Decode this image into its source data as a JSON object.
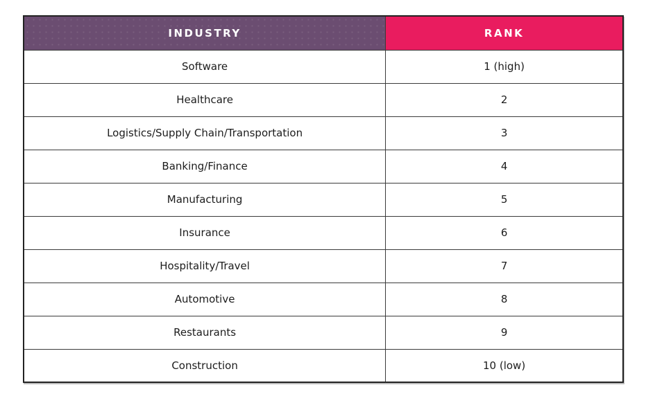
{
  "colors": {
    "industry_header_bg": "#6B4D71",
    "rank_header_bg": "#E91C5F",
    "header_text": "#FFFFFF",
    "body_text": "#1C1C1C",
    "border": "#3A3A3A"
  },
  "table": {
    "columns": [
      {
        "key": "industry",
        "label": "INDUSTRY"
      },
      {
        "key": "rank",
        "label": "RANK"
      }
    ],
    "rows": [
      {
        "industry": "Software",
        "rank": "1 (high)"
      },
      {
        "industry": "Healthcare",
        "rank": "2"
      },
      {
        "industry": "Logistics/Supply Chain/Transportation",
        "rank": "3"
      },
      {
        "industry": "Banking/Finance",
        "rank": "4"
      },
      {
        "industry": "Manufacturing",
        "rank": "5"
      },
      {
        "industry": "Insurance",
        "rank": "6"
      },
      {
        "industry": "Hospitality/Travel",
        "rank": "7"
      },
      {
        "industry": "Automotive",
        "rank": "8"
      },
      {
        "industry": "Restaurants",
        "rank": "9"
      },
      {
        "industry": "Construction",
        "rank": "10 (low)"
      }
    ]
  },
  "chart_data": {
    "type": "table",
    "columns": [
      "INDUSTRY",
      "RANK"
    ],
    "rows": [
      [
        "Software",
        "1 (high)"
      ],
      [
        "Healthcare",
        "2"
      ],
      [
        "Logistics/Supply Chain/Transportation",
        "3"
      ],
      [
        "Banking/Finance",
        "4"
      ],
      [
        "Manufacturing",
        "5"
      ],
      [
        "Insurance",
        "6"
      ],
      [
        "Hospitality/Travel",
        "7"
      ],
      [
        "Automotive",
        "8"
      ],
      [
        "Restaurants",
        "9"
      ],
      [
        "Construction",
        "10 (low)"
      ]
    ],
    "layout_hints": {
      "header_styles": [
        "purple #6B4D71",
        "pink #E91C5F"
      ],
      "grid": true,
      "cell_alignment": "center"
    }
  }
}
